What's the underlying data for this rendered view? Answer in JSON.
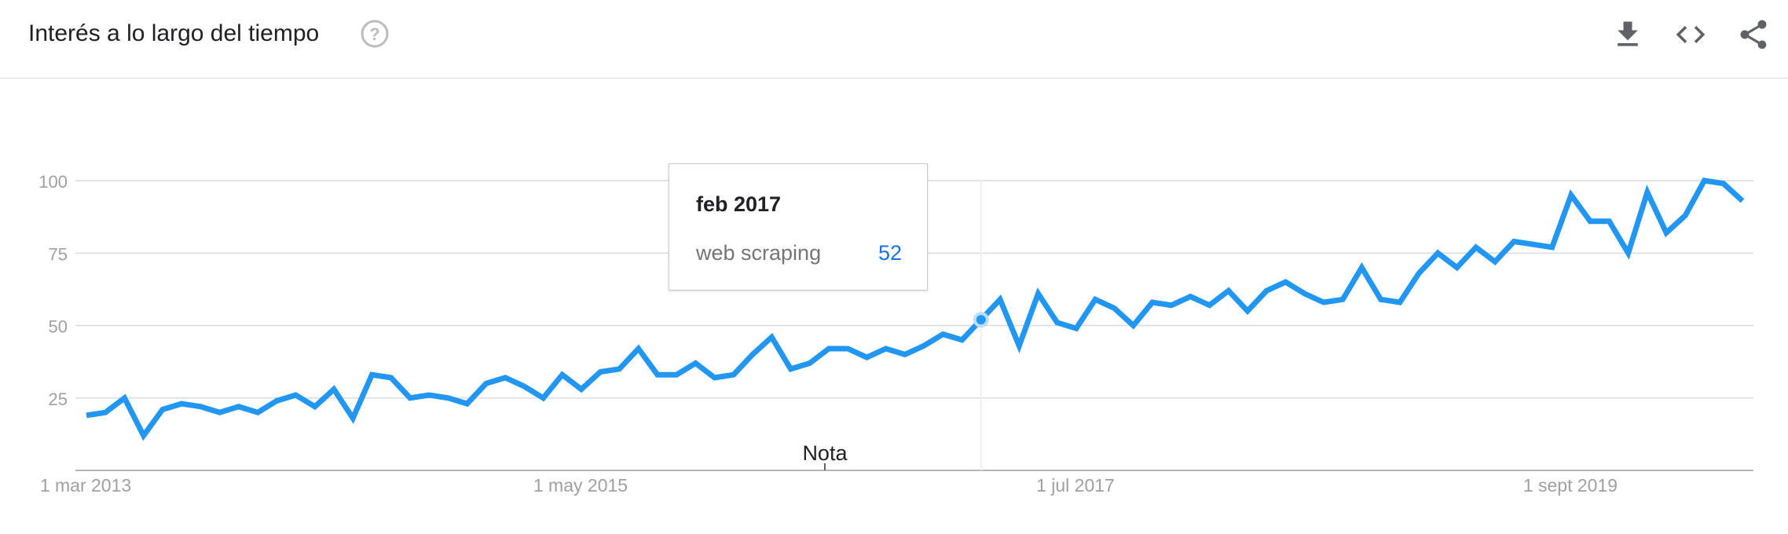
{
  "header": {
    "title": "Interés a lo largo del tiempo",
    "icons": [
      "help-icon",
      "download-icon",
      "embed-icon",
      "share-icon"
    ]
  },
  "colors": {
    "series": "#2196f3",
    "grid": "#dadce0",
    "axis_text": "#a0a0a0",
    "tooltip_value": "#1a73e8"
  },
  "tooltip": {
    "date": "feb 2017",
    "term": "web scraping",
    "value": "52"
  },
  "note_label": "Nota",
  "chart_data": {
    "type": "line",
    "title": "Interés a lo largo del tiempo",
    "xlabel": "",
    "ylabel": "",
    "x_ticks": [
      "1 mar 2013",
      "1 may 2015",
      "1 jul 2017",
      "1 sept 2019"
    ],
    "y_ticks": [
      25,
      50,
      75,
      100
    ],
    "ylim": [
      0,
      100
    ],
    "grid": true,
    "legend": "none",
    "highlight": {
      "label": "feb 2017",
      "value": 52
    },
    "series": [
      {
        "name": "web scraping",
        "values": [
          19,
          20,
          25,
          12,
          21,
          23,
          22,
          20,
          22,
          20,
          24,
          26,
          22,
          28,
          18,
          33,
          32,
          25,
          26,
          25,
          23,
          30,
          32,
          29,
          25,
          33,
          28,
          34,
          35,
          42,
          33,
          33,
          37,
          32,
          33,
          40,
          46,
          35,
          37,
          42,
          42,
          39,
          42,
          40,
          43,
          47,
          45,
          52,
          59,
          43,
          61,
          51,
          49,
          59,
          56,
          50,
          58,
          57,
          60,
          57,
          62,
          55,
          62,
          65,
          61,
          58,
          59,
          70,
          59,
          58,
          68,
          75,
          70,
          77,
          72,
          79,
          78,
          77,
          95,
          86,
          86,
          75,
          96,
          82,
          88,
          100,
          99,
          93
        ]
      }
    ]
  }
}
